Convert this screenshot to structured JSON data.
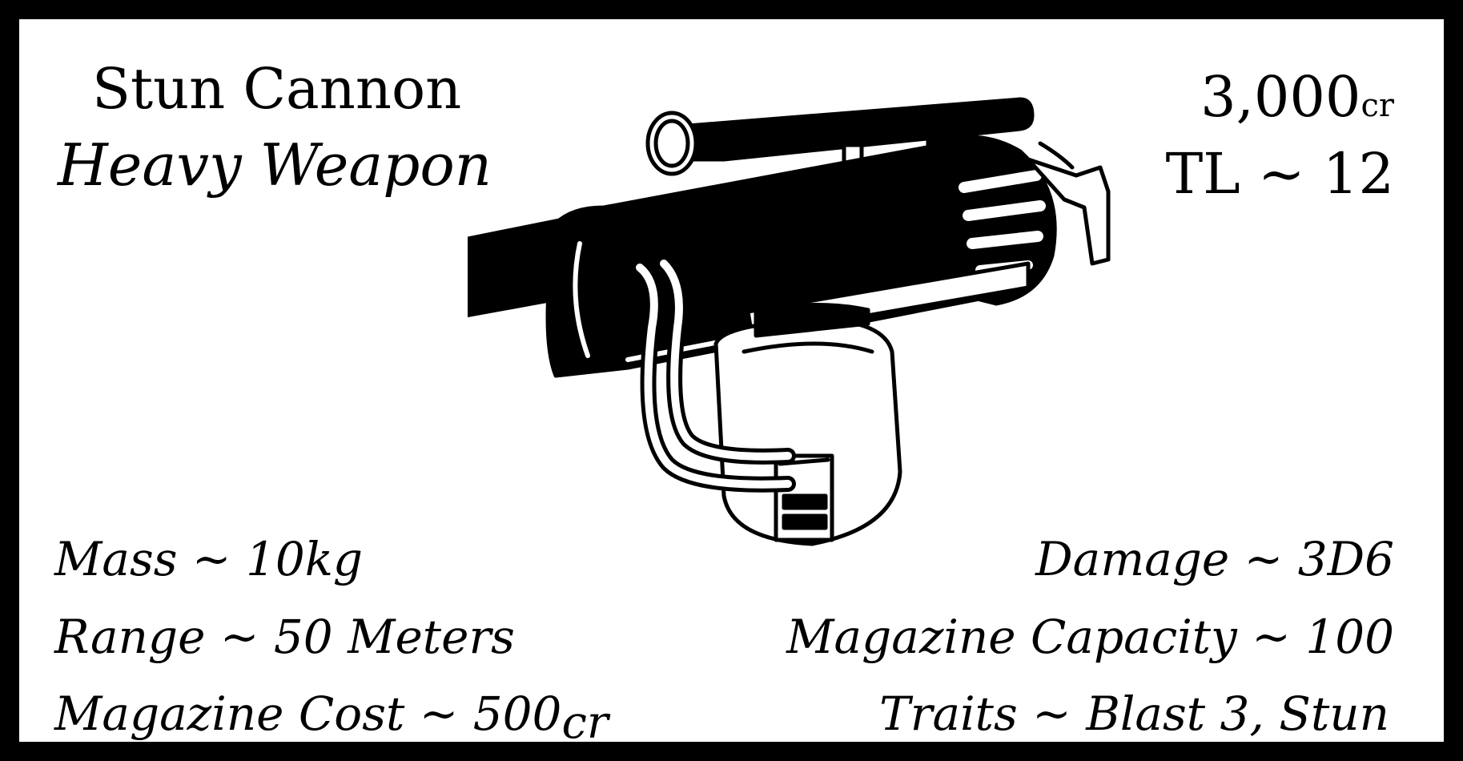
{
  "card": {
    "name": "Stun Cannon",
    "category": "Heavy Weapon",
    "price_value": "3,000",
    "price_unit": "cr",
    "tech_level": "TL ~ 12",
    "illustration_icon": "stun-cannon-illustration"
  },
  "stats": {
    "mass": "Mass ~ 10kg",
    "range": "Range ~ 50 Meters",
    "magazine_cost_value": "Magazine Cost ~ 500",
    "magazine_cost_unit": "cr",
    "damage": "Damage ~ 3D6",
    "magazine_capacity": "Magazine Capacity ~ 100",
    "traits": "Traits ~ Blast 3, Stun"
  },
  "colors": {
    "ink": "#000000",
    "paper": "#ffffff"
  }
}
